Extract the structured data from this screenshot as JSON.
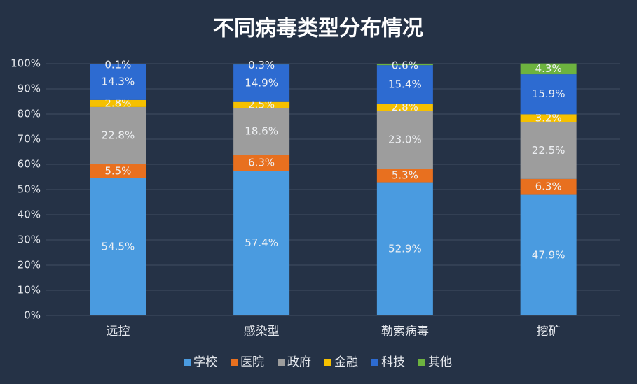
{
  "chart_data": {
    "type": "stacked_bar_percent",
    "title": "不同病毒类型分布情况",
    "categories": [
      "远控",
      "感染型",
      "勒索病毒",
      "挖矿"
    ],
    "series": [
      {
        "name": "学校",
        "color": "#4a9be0",
        "values": [
          54.5,
          57.4,
          52.9,
          47.9
        ],
        "value_labels": [
          "54.5%",
          "57.4%",
          "52.9%",
          "47.9%"
        ]
      },
      {
        "name": "医院",
        "color": "#e8701f",
        "values": [
          5.5,
          6.3,
          5.3,
          6.3
        ],
        "value_labels": [
          "5.5%",
          "6.3%",
          "5.3%",
          "6.3%"
        ]
      },
      {
        "name": "政府",
        "color": "#9d9d9d",
        "values": [
          22.8,
          18.6,
          23.0,
          22.5
        ],
        "value_labels": [
          "22.8%",
          "18.6%",
          "23.0%",
          "22.5%"
        ]
      },
      {
        "name": "金融",
        "color": "#f5c000",
        "values": [
          2.8,
          2.5,
          2.8,
          3.2
        ],
        "value_labels": [
          "2.8%",
          "2.5%",
          "2.8%",
          "3.2%"
        ]
      },
      {
        "name": "科技",
        "color": "#2d6bd1",
        "values": [
          14.3,
          14.9,
          15.4,
          15.9
        ],
        "value_labels": [
          "14.3%",
          "14.9%",
          "15.4%",
          "15.9%"
        ]
      },
      {
        "name": "其他",
        "color": "#6db33f",
        "values": [
          0.1,
          0.3,
          0.6,
          4.3
        ],
        "value_labels": [
          "0.1%",
          "0.3%",
          "0.6%",
          "4.3%"
        ]
      }
    ],
    "ylim": [
      0,
      100
    ],
    "yticks": [
      {
        "value": 0,
        "label": "0%"
      },
      {
        "value": 10,
        "label": "10%"
      },
      {
        "value": 20,
        "label": "20%"
      },
      {
        "value": 30,
        "label": "30%"
      },
      {
        "value": 40,
        "label": "40%"
      },
      {
        "value": 50,
        "label": "50%"
      },
      {
        "value": 60,
        "label": "60%"
      },
      {
        "value": 70,
        "label": "70%"
      },
      {
        "value": 80,
        "label": "80%"
      },
      {
        "value": 90,
        "label": "90%"
      },
      {
        "value": 100,
        "label": "100%"
      }
    ],
    "grid": true
  }
}
